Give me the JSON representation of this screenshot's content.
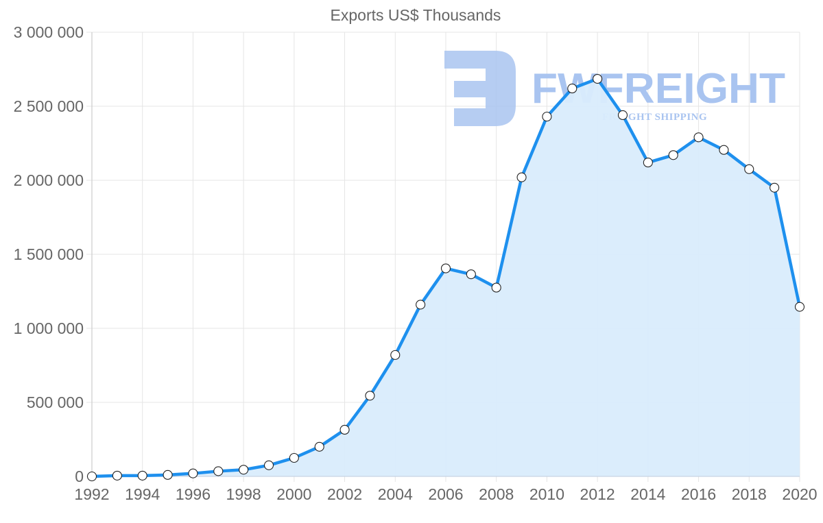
{
  "chart_data": {
    "type": "line",
    "title": "Exports US$ Thousands",
    "xlabel": "",
    "ylabel": "",
    "ylim": [
      0,
      3000000
    ],
    "yticks": [
      0,
      500000,
      1000000,
      1500000,
      2000000,
      2500000,
      3000000
    ],
    "ytick_labels": [
      "0",
      "500 000",
      "1 000 000",
      "1 500 000",
      "2 000 000",
      "2 500 000",
      "3 000 000"
    ],
    "xtick_labels": [
      "1992",
      "1994",
      "1996",
      "1998",
      "2000",
      "2002",
      "2004",
      "2006",
      "2008",
      "2010",
      "2012",
      "2014",
      "2016",
      "2018",
      "2020"
    ],
    "grid": true,
    "fill": true,
    "legend": null,
    "x": [
      1992,
      1993,
      1994,
      1995,
      1996,
      1997,
      1998,
      1999,
      2000,
      2001,
      2002,
      2003,
      2004,
      2005,
      2006,
      2007,
      2008,
      2009,
      2010,
      2011,
      2012,
      2013,
      2014,
      2015,
      2016,
      2017,
      2018,
      2019,
      2020
    ],
    "series": [
      {
        "name": "Exports US$ Thousands",
        "color": "#1e90ee",
        "fill_color": "#d9ecfc",
        "values": [
          0,
          5000,
          5000,
          10000,
          20000,
          35000,
          45000,
          75000,
          125000,
          200000,
          315000,
          545000,
          820000,
          1160000,
          1405000,
          1365000,
          1275000,
          2020000,
          2430000,
          2620000,
          2685000,
          2440000,
          2120000,
          2170000,
          2290000,
          2205000,
          2075000,
          1950000,
          1145000
        ]
      }
    ]
  },
  "watermark": {
    "brand": "FWFREIGHT",
    "tagline": "FREIGHT SHIPPING",
    "color": "#a9c4f0"
  },
  "colors": {
    "axis_text": "#666666",
    "grid": "#e5e5e5",
    "line": "#1e90ee",
    "fill": "#d9ecfc"
  }
}
